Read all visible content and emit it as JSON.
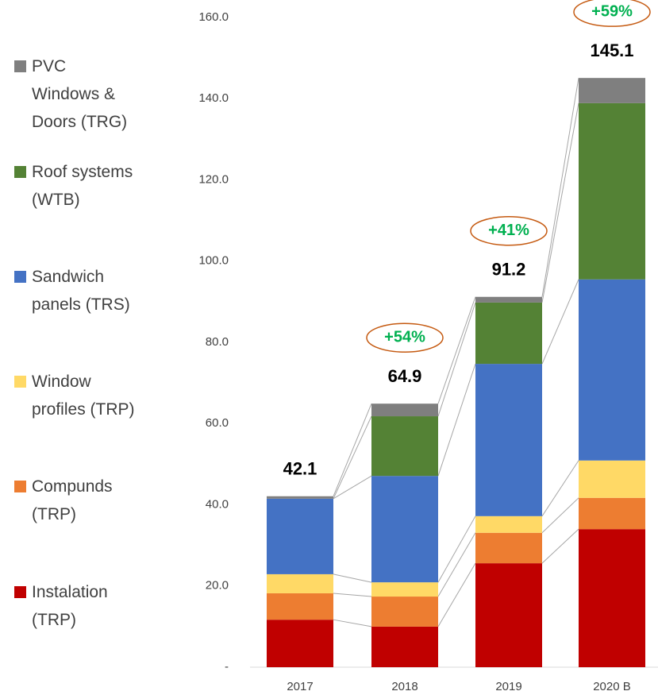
{
  "chart_data": {
    "type": "stacked_bar",
    "categories": [
      "2017",
      "2018",
      "2019",
      "2020 B"
    ],
    "series": [
      {
        "name": "Instalation (TRP)",
        "color": "#c00000",
        "values": [
          11.7,
          10.0,
          25.6,
          34.0
        ]
      },
      {
        "name": "Compunds (TRP)",
        "color": "#ed7d31",
        "values": [
          6.5,
          7.4,
          7.5,
          7.7
        ]
      },
      {
        "name": "Window profiles (TRP)",
        "color": "#ffd966",
        "values": [
          4.7,
          3.5,
          4.1,
          9.2
        ]
      },
      {
        "name": "Sandwich panels (TRS)",
        "color": "#4472c4",
        "values": [
          18.6,
          26.2,
          37.5,
          44.6
        ]
      },
      {
        "name": "Roof systems (WTB)",
        "color": "#548235",
        "values": [
          0,
          14.7,
          15.1,
          43.4
        ]
      },
      {
        "name": "PVC Windows & Doors (TRG)",
        "color": "#7f7f7f",
        "values": [
          0.6,
          3.1,
          1.4,
          6.2
        ]
      }
    ],
    "totals": [
      42.1,
      64.9,
      91.2,
      145.1
    ],
    "growth": {
      "values": [
        54,
        41,
        59
      ],
      "value_labels": [
        "+54%",
        "+41%",
        "+59%"
      ]
    },
    "ylim": [
      0,
      160
    ],
    "yticks": [
      {
        "value": 0,
        "label": "-"
      },
      {
        "value": 20,
        "label": "20.0"
      },
      {
        "value": 40,
        "label": "40.0"
      },
      {
        "value": 60,
        "label": "60.0"
      },
      {
        "value": 80,
        "label": "80.0"
      },
      {
        "value": 100,
        "label": "100.0"
      },
      {
        "value": 120,
        "label": "120.0"
      },
      {
        "value": 140,
        "label": "140.0"
      },
      {
        "value": 160,
        "label": "160.0"
      }
    ],
    "legend": "left"
  }
}
